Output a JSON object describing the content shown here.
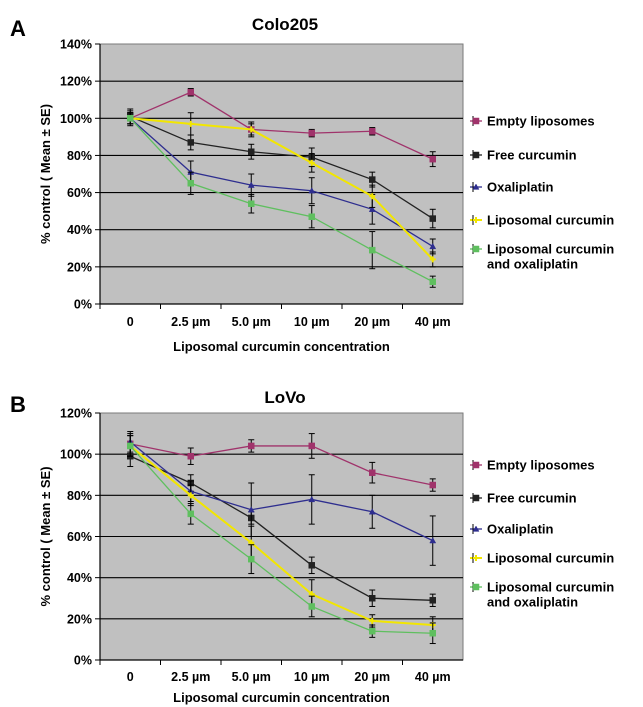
{
  "chart_data": [
    {
      "type": "line",
      "panel": "A",
      "title": "Colo205",
      "xlabel": "Liposomal curcumin concentration",
      "ylabel": "% control ( Mean ± SE)",
      "ylim": [
        0,
        140
      ],
      "ytick_step": 20,
      "ytick_suffix": "%",
      "categories": [
        "0",
        "2.5 µm",
        "5.0 µm",
        "10 µm",
        "20 µm",
        "40 µm"
      ],
      "grid": true,
      "legend_placement": "right",
      "series": [
        {
          "name": "Empty liposomes",
          "color": "#a0336b",
          "marker": "square",
          "values": [
            100,
            114,
            94,
            92,
            93,
            78
          ],
          "errors": [
            3,
            2,
            3,
            2,
            2,
            4
          ]
        },
        {
          "name": "Free curcumin",
          "color": "#222222",
          "marker": "square",
          "values": [
            101,
            87,
            82,
            79,
            67,
            46
          ],
          "errors": [
            4,
            4,
            4,
            5,
            4,
            5
          ]
        },
        {
          "name": "Oxaliplatin",
          "color": "#2e2e8f",
          "marker": "triangle",
          "values": [
            100,
            71,
            64,
            61,
            51,
            31
          ],
          "errors": [
            4,
            6,
            6,
            7,
            8,
            4
          ]
        },
        {
          "name": "Liposomal curcumin",
          "color": "#f2e600",
          "marker": "cross",
          "values": [
            100,
            97,
            94,
            76,
            58,
            24
          ],
          "errors": [
            3,
            6,
            4,
            5,
            6,
            4
          ]
        },
        {
          "name": "Liposomal curcumin\nand oxaliplatin",
          "color": "#5fbf5f",
          "marker": "square",
          "values": [
            100,
            65,
            54,
            47,
            29,
            12
          ],
          "errors": [
            3,
            6,
            5,
            6,
            10,
            3
          ]
        }
      ]
    },
    {
      "type": "line",
      "panel": "B",
      "title": "LoVo",
      "xlabel": "Liposomal curcumin concentration",
      "ylabel": "% control ( Mean ± SE)",
      "ylim": [
        0,
        120
      ],
      "ytick_step": 20,
      "ytick_suffix": "%",
      "categories": [
        "0",
        "2.5 µm",
        "5.0 µm",
        "10 µm",
        "20 µm",
        "40 µm"
      ],
      "grid": true,
      "legend_placement": "right",
      "series": [
        {
          "name": "Empty liposomes",
          "color": "#a0336b",
          "marker": "square",
          "values": [
            105,
            99,
            104,
            104,
            91,
            85
          ],
          "errors": [
            5,
            4,
            3,
            6,
            5,
            3
          ]
        },
        {
          "name": "Free curcumin",
          "color": "#222222",
          "marker": "square",
          "values": [
            99,
            86,
            69,
            46,
            30,
            29
          ],
          "errors": [
            5,
            4,
            3,
            4,
            4,
            3
          ]
        },
        {
          "name": "Oxaliplatin",
          "color": "#2e2e8f",
          "marker": "triangle",
          "values": [
            106,
            82,
            73,
            78,
            72,
            58
          ],
          "errors": [
            5,
            5,
            13,
            12,
            8,
            12
          ]
        },
        {
          "name": "Liposomal curcumin",
          "color": "#f2e600",
          "marker": "cross",
          "values": [
            104,
            80,
            57,
            32,
            19,
            17
          ],
          "errors": [
            5,
            5,
            8,
            7,
            3,
            4
          ]
        },
        {
          "name": "Liposomal curcumin\nand oxaliplatin",
          "color": "#5fbf5f",
          "marker": "square",
          "values": [
            104,
            71,
            49,
            26,
            14,
            13
          ],
          "errors": [
            5,
            5,
            7,
            5,
            3,
            5
          ]
        }
      ]
    }
  ]
}
